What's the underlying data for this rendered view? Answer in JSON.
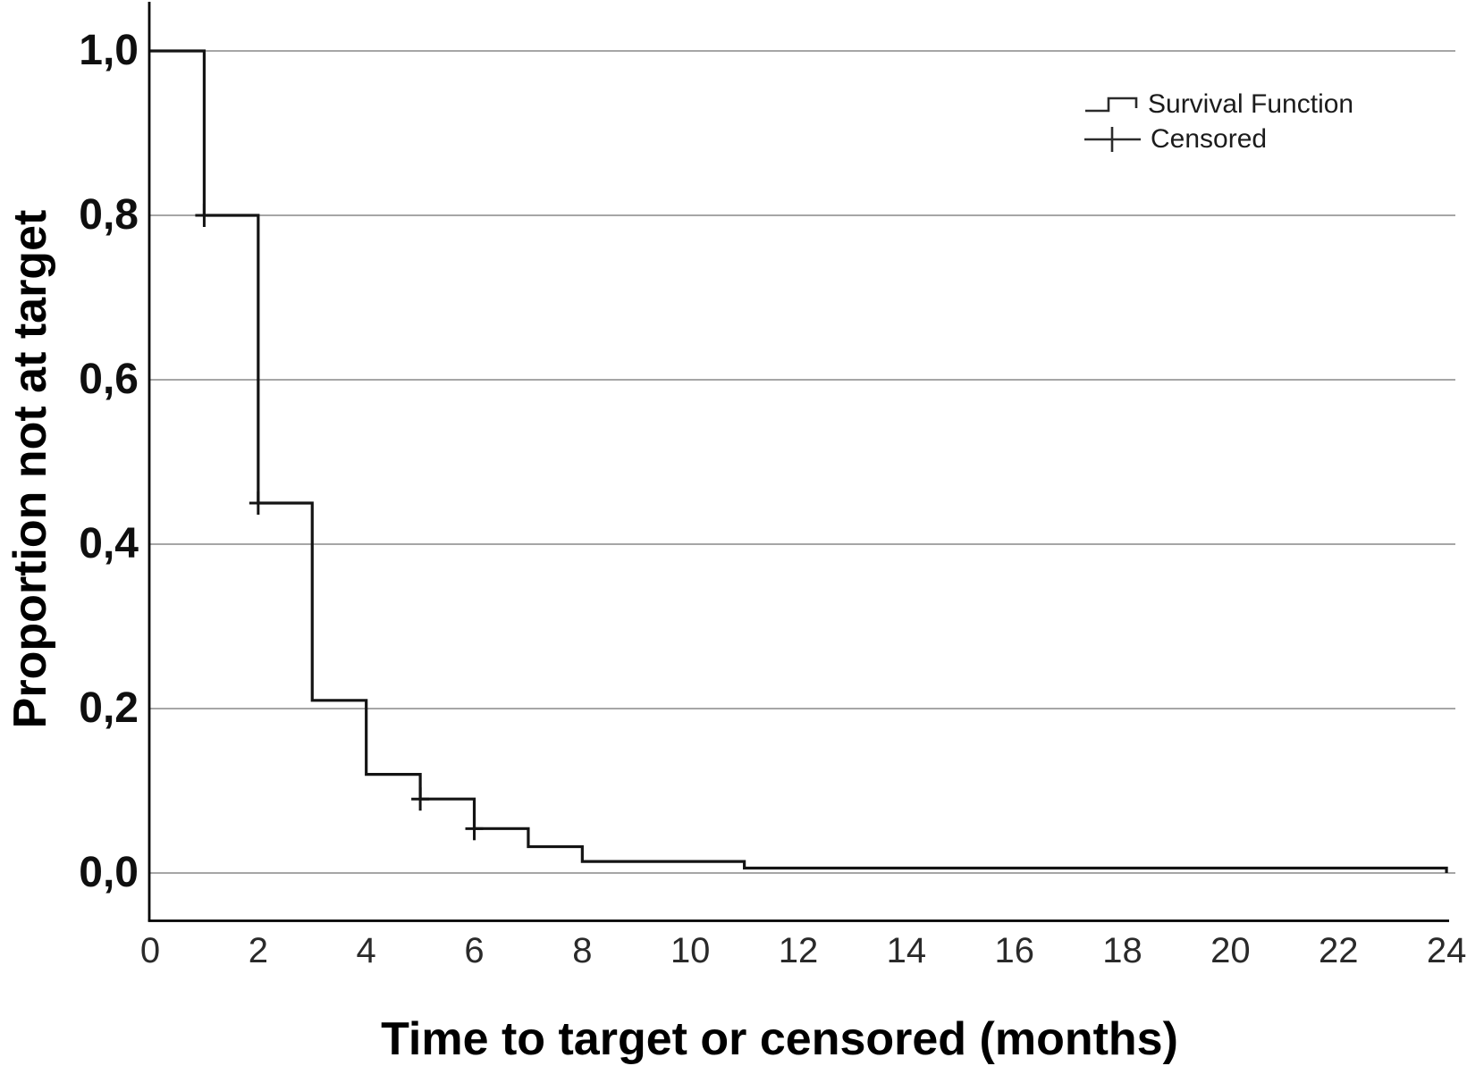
{
  "chart_data": {
    "type": "line",
    "subtype": "kaplan_meier_step",
    "title": "",
    "xlabel": "Time to target or censored (months)",
    "ylabel": "Proportion not at target",
    "xlim": [
      0,
      24
    ],
    "ylim": [
      0.0,
      1.0
    ],
    "grid": "horizontal",
    "x_ticks": {
      "values": [
        0,
        2,
        4,
        6,
        8,
        10,
        12,
        14,
        16,
        18,
        20,
        22,
        24
      ],
      "labels": [
        "0",
        "2",
        "4",
        "6",
        "8",
        "10",
        "12",
        "14",
        "16",
        "18",
        "20",
        "22",
        "24"
      ]
    },
    "y_ticks": {
      "values": [
        0.0,
        0.2,
        0.4,
        0.6,
        0.8,
        1.0
      ],
      "labels": [
        "0,0",
        "0,2",
        "0,4",
        "0,6",
        "0,8",
        "1,0"
      ]
    },
    "legend": {
      "position": "top-right",
      "entries": [
        {
          "label": "Survival Function",
          "marker": "step-line"
        },
        {
          "label": "Censored",
          "marker": "plus-cross"
        }
      ]
    },
    "series": [
      {
        "name": "Survival Function",
        "style": "step",
        "survival_steps": [
          {
            "t_start": 0,
            "t_end": 1,
            "s": 1.0
          },
          {
            "t_start": 1,
            "t_end": 2,
            "s": 0.8
          },
          {
            "t_start": 2,
            "t_end": 3,
            "s": 0.45
          },
          {
            "t_start": 3,
            "t_end": 4,
            "s": 0.21
          },
          {
            "t_start": 4,
            "t_end": 5,
            "s": 0.12
          },
          {
            "t_start": 5,
            "t_end": 6,
            "s": 0.09
          },
          {
            "t_start": 6,
            "t_end": 7,
            "s": 0.054
          },
          {
            "t_start": 7,
            "t_end": 8,
            "s": 0.032
          },
          {
            "t_start": 8,
            "t_end": 11,
            "s": 0.014
          },
          {
            "t_start": 11,
            "t_end": 24,
            "s": 0.006
          }
        ],
        "final_point": {
          "t": 24,
          "s": 0.0
        },
        "event_times_months": [
          1,
          2,
          3,
          4,
          5,
          6,
          7,
          8,
          11,
          24
        ]
      }
    ],
    "censored": [
      {
        "t": 1,
        "s": 0.8
      },
      {
        "t": 2,
        "s": 0.45
      },
      {
        "t": 5,
        "s": 0.09
      },
      {
        "t": 6,
        "s": 0.054
      }
    ],
    "colors": {
      "curve": "#141414",
      "grid": "#9a9a9a",
      "axis": "#000000",
      "background": "#ffffff"
    }
  }
}
